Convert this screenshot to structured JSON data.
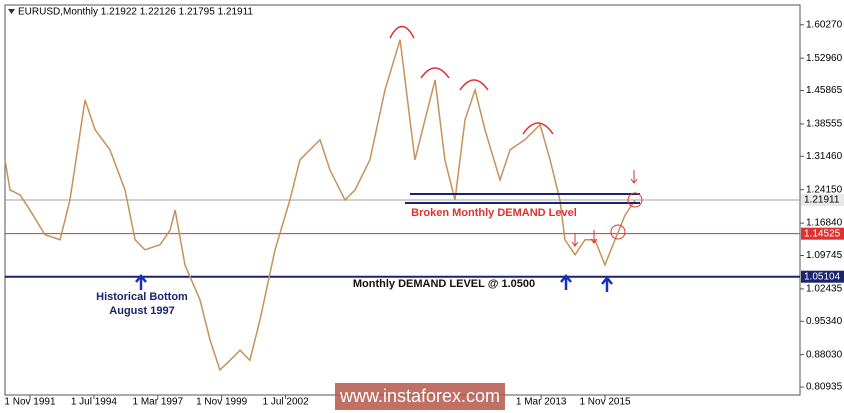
{
  "chart_data": {
    "type": "line",
    "header": "EURUSD,Monthly  1.21922 1.22126 1.21795 1.21911",
    "watermark": "www.instaforex.com",
    "annotations": {
      "broken": "Broken Monthly DEMAND Level",
      "demand": "Monthly DEMAND LEVEL @ 1.0500",
      "bottom1": "Historical Bottom",
      "bottom2": "August 1997"
    },
    "x": [
      1990.79,
      1991.0,
      1991.42,
      1991.83,
      1992.46,
      1993.09,
      1993.5,
      1994.13,
      1994.55,
      1995.17,
      1995.8,
      1996.22,
      1996.63,
      1997.26,
      1997.68,
      1997.89,
      1998.3,
      1998.93,
      1999.35,
      1999.76,
      2000.18,
      2000.6,
      2001.01,
      2001.43,
      2002.06,
      2002.68,
      2003.1,
      2003.94,
      2004.35,
      2004.98,
      2005.4,
      2006.02,
      2006.65,
      2007.28,
      2007.69,
      2007.9,
      2008.32,
      2008.74,
      2009.15,
      2009.57,
      2009.99,
      2010.41,
      2010.82,
      2011.45,
      2011.87,
      2012.49,
      2013.12,
      2013.54,
      2013.95,
      2014.16,
      2014.58,
      2015.0,
      2015.41,
      2015.83,
      2016.25,
      2016.67,
      2017.09
    ],
    "series": [
      {
        "name": "EURUSD",
        "color": "#c8915a",
        "values": [
          1.307,
          1.241,
          1.23,
          1.197,
          1.143,
          1.132,
          1.219,
          1.438,
          1.373,
          1.329,
          1.241,
          1.132,
          1.11,
          1.121,
          1.153,
          1.197,
          1.077,
          1.0,
          0.912,
          0.847,
          0.868,
          0.89,
          0.868,
          0.956,
          1.11,
          1.219,
          1.307,
          1.351,
          1.285,
          1.219,
          1.241,
          1.307,
          1.46,
          1.57,
          1.395,
          1.307,
          1.395,
          1.482,
          1.307,
          1.219,
          1.395,
          1.46,
          1.373,
          1.263,
          1.329,
          1.351,
          1.384,
          1.307,
          1.219,
          1.132,
          1.099,
          1.132,
          1.132,
          1.077,
          1.132,
          1.186,
          1.219
        ]
      }
    ],
    "levels": [
      {
        "value": 1.21911,
        "color": "#a0a0a0",
        "label_color": "#000",
        "bg": "#e8e8e8"
      },
      {
        "value": 1.14525,
        "color": "#e03030",
        "label_color": "#fff",
        "bg": "#e03030"
      },
      {
        "value": 1.05104,
        "color": "#1a2470",
        "label_color": "#fff",
        "bg": "#1a2470"
      }
    ],
    "xlim": [
      1990.79,
      2023.97
    ],
    "ylim": [
      0.792,
      1.646
    ],
    "xticks": [
      {
        "value": 1991.833,
        "label": "1 Nov 1991"
      },
      {
        "value": 1994.5,
        "label": "1 Jul 1994"
      },
      {
        "value": 1997.167,
        "label": "1 Mar 1997"
      },
      {
        "value": 1999.833,
        "label": "1 Nov 1999"
      },
      {
        "value": 2002.5,
        "label": "1 Jul 2002"
      },
      {
        "value": 2013.167,
        "label": "1 Mar 2013"
      },
      {
        "value": 2015.833,
        "label": "1 Nov 2015"
      }
    ],
    "yticks": [
      {
        "value": 1.6027,
        "label": "1.60270"
      },
      {
        "value": 1.5296,
        "label": "1.52960"
      },
      1.45865,
      1.38555,
      {
        "value": 1.3146,
        "label": "1.31460"
      },
      {
        "value": 1.2415,
        "label": "1.24150"
      },
      {
        "value": 1.1684,
        "label": "1.16840"
      },
      1.09745,
      1.02435,
      {
        "value": 0.9534,
        "label": "0.95340"
      },
      {
        "value": 0.8803,
        "label": "0.88030"
      },
      0.80935
    ]
  }
}
